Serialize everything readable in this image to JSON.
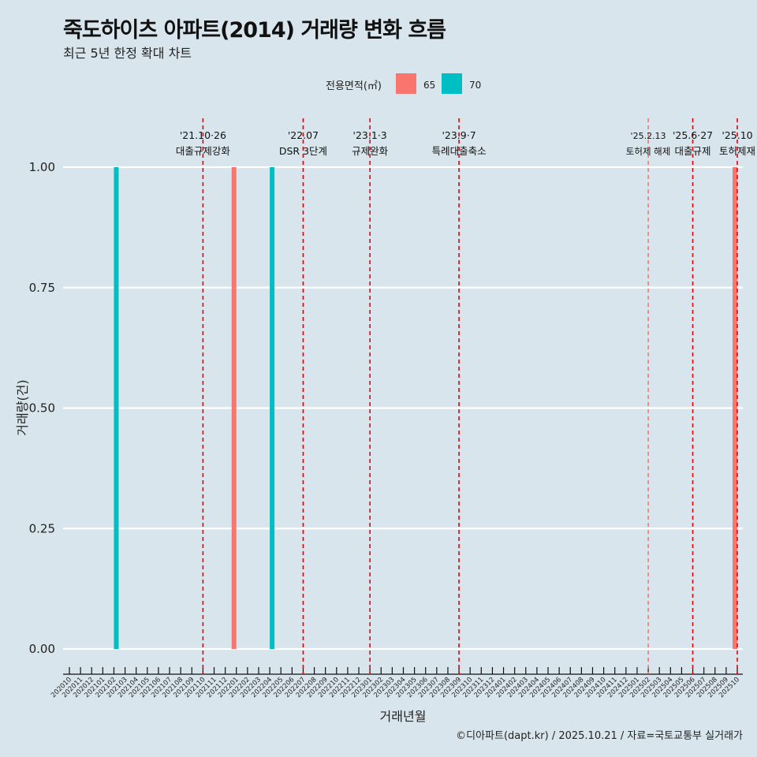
{
  "header": {
    "title": "죽도하이츠 아파트(2014) 거래량 변화 흐름",
    "subtitle": "최근 5년 한정 확대 차트"
  },
  "caption": "©디아파트(dapt.kr) / 2025.10.21 / 자료=국토교통부 실거래가",
  "chart_data": {
    "type": "bar",
    "title": "죽도하이츠 아파트(2014) 거래량 변화 흐름",
    "xlabel": "거래년월",
    "ylabel": "거래량(건)",
    "ylim": [
      0,
      1
    ],
    "yticks": [
      "0.00",
      "0.25",
      "0.50",
      "0.75",
      "1.00"
    ],
    "grid": true,
    "legend": {
      "title": "전용면적(㎡)",
      "position": "top",
      "entries": [
        {
          "name": "65",
          "color": "#F8766D"
        },
        {
          "name": "70",
          "color": "#00BFC4"
        }
      ]
    },
    "categories": [
      "202010",
      "202011",
      "202012",
      "202101",
      "202102",
      "202103",
      "202104",
      "202105",
      "202106",
      "202107",
      "202108",
      "202109",
      "202110",
      "202111",
      "202112",
      "202201",
      "202202",
      "202203",
      "202204",
      "202205",
      "202206",
      "202207",
      "202208",
      "202209",
      "202210",
      "202211",
      "202212",
      "202301",
      "202302",
      "202303",
      "202304",
      "202305",
      "202306",
      "202307",
      "202308",
      "202309",
      "202310",
      "202311",
      "202312",
      "202401",
      "202402",
      "202403",
      "202404",
      "202405",
      "202406",
      "202407",
      "202408",
      "202409",
      "202410",
      "202411",
      "202412",
      "202501",
      "202502",
      "202503",
      "202504",
      "202505",
      "202506",
      "202507",
      "202508",
      "202509",
      "202510"
    ],
    "series": [
      {
        "name": "65",
        "color": "#F8766D",
        "points": [
          {
            "x": "202201",
            "y": 1
          },
          {
            "x": "202510",
            "y": 1
          }
        ]
      },
      {
        "name": "70",
        "color": "#00BFC4",
        "points": [
          {
            "x": "202102",
            "y": 1
          },
          {
            "x": "202204",
            "y": 1
          }
        ]
      }
    ],
    "annotations": [
      {
        "x": "202110",
        "line1": "'21.10·26",
        "line2": "대출규제강화"
      },
      {
        "x": "202207",
        "line1": "'22.07",
        "line2": "DSR 3단계"
      },
      {
        "x": "202301",
        "line1": "'23.1·3",
        "line2": "규제완화"
      },
      {
        "x": "202309",
        "line1": "'23.9·7",
        "line2": "특례대출축소"
      },
      {
        "x": "202502",
        "line1": "'25.2.13",
        "line2": "토허제 해제",
        "light": true
      },
      {
        "x": "202506",
        "line1": "'25.6·27",
        "line2": "대출규제"
      },
      {
        "x": "202510",
        "line1": "'25.10",
        "line2": "토허제재"
      }
    ]
  }
}
